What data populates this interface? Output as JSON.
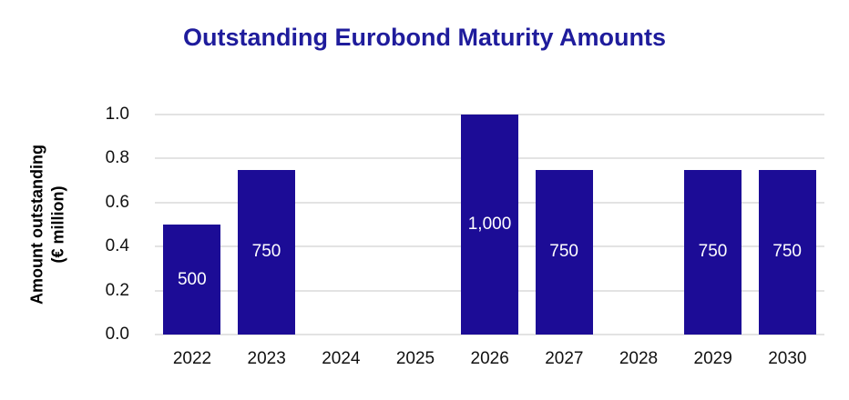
{
  "title": "Outstanding Eurobond Maturity Amounts",
  "colors": {
    "title_text": "#1F1C9C",
    "bar_fill": "#1C0C96",
    "gridline": "#E3E3E3",
    "axis_text": "#111111",
    "bar_label_text": "#FFFFFF",
    "background": "#FFFFFF"
  },
  "chart_data": {
    "type": "bar",
    "title": "Outstanding Eurobond Maturity Amounts",
    "xlabel": "",
    "ylabel_lines": [
      "Amount outstanding",
      "(€ million)"
    ],
    "categories": [
      "2022",
      "2023",
      "2024",
      "2025",
      "2026",
      "2027",
      "2028",
      "2029",
      "2030"
    ],
    "values": [
      500,
      750,
      0,
      0,
      1000,
      750,
      0,
      750,
      750
    ],
    "bar_labels": [
      "500",
      "750",
      "",
      "",
      "1,000",
      "750",
      "",
      "750",
      "750"
    ],
    "axis_heights": [
      0.5,
      0.75,
      0,
      0,
      1.0,
      0.75,
      0,
      0.75,
      0.75
    ],
    "ylim": [
      0.0,
      1.0
    ],
    "yticks": [
      0.0,
      0.2,
      0.4,
      0.6,
      0.8,
      1.0
    ],
    "ytick_labels": [
      "0.0",
      "0.2",
      "0.4",
      "0.6",
      "0.8",
      "1.0"
    ],
    "grid": true,
    "legend": false
  }
}
